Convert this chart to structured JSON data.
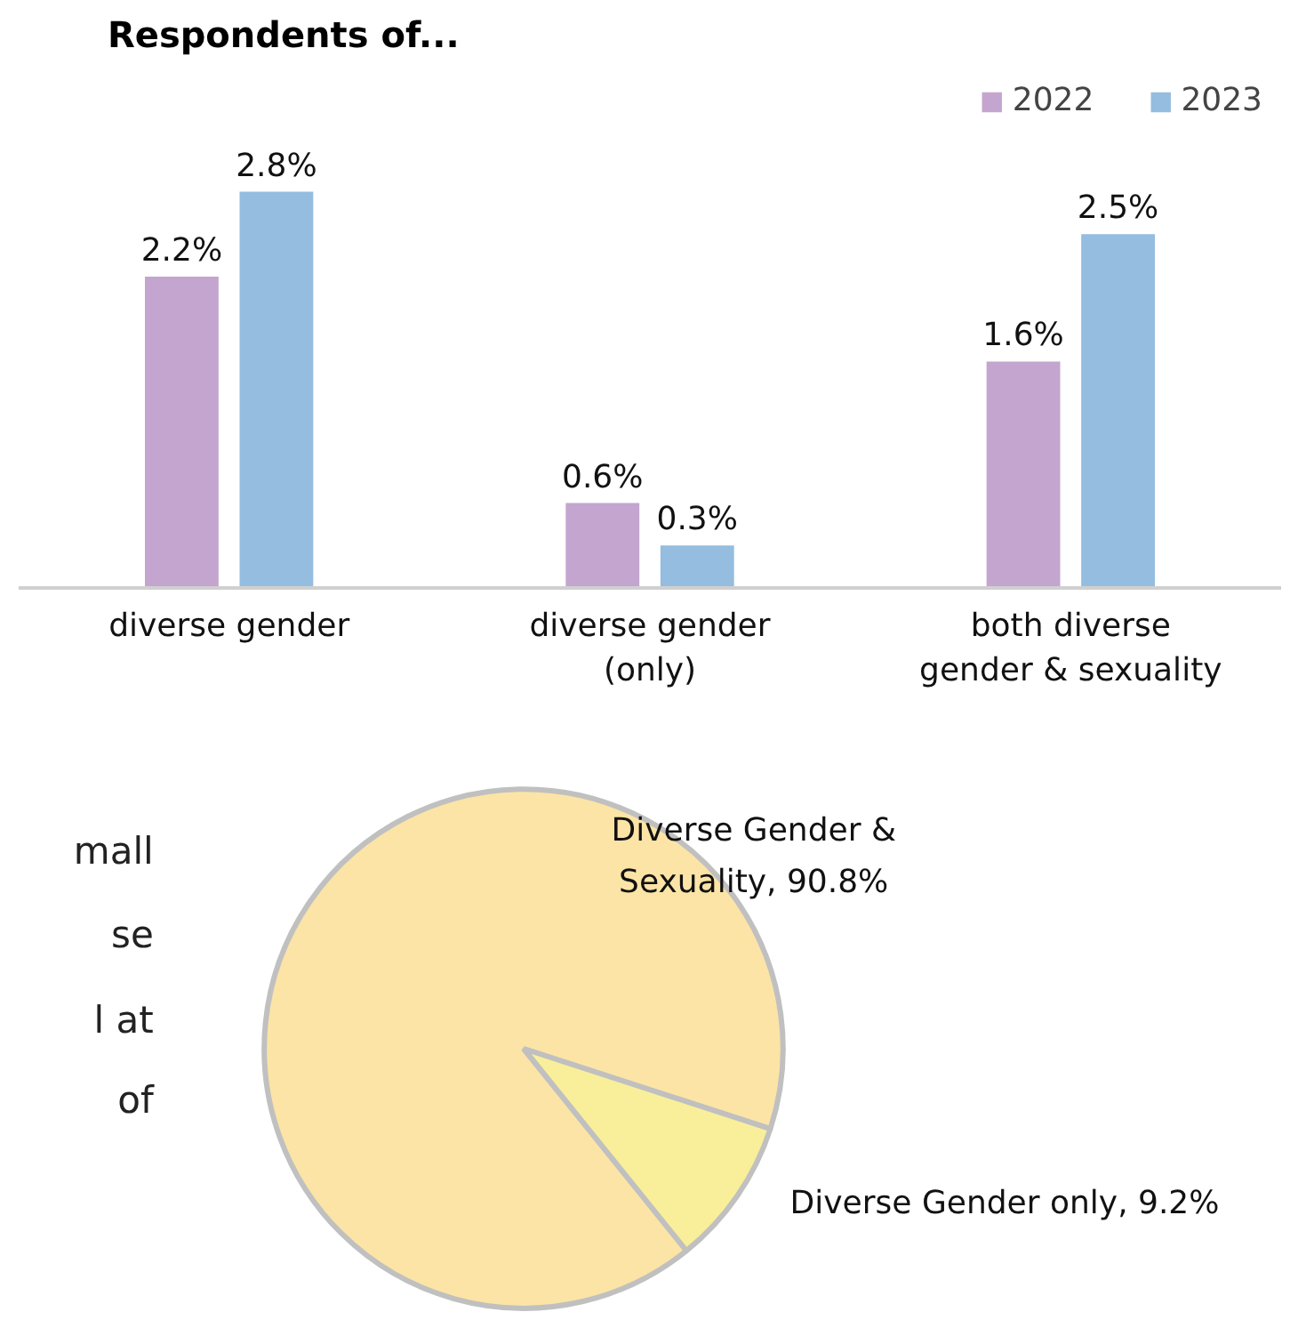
{
  "chart_data": [
    {
      "type": "bar",
      "title": "Respondents of...",
      "categories": [
        "diverse gender",
        "diverse gender (only)",
        "both diverse gender & sexuality"
      ],
      "series": [
        {
          "name": "2022",
          "color": "#c4a5cf",
          "values": [
            2.2,
            0.6,
            1.6
          ],
          "value_labels": [
            "2.2%",
            "0.6%",
            "1.6%"
          ]
        },
        {
          "name": "2023",
          "color": "#94bde0",
          "values": [
            2.8,
            0.3,
            2.5
          ],
          "value_labels": [
            "2.8%",
            "0.3%",
            "2.5%"
          ]
        }
      ],
      "legend": "top right",
      "grid": false
    },
    {
      "type": "pie",
      "categories": [
        "Diverse Gender & Sexuality",
        "Diverse Gender only"
      ],
      "values": [
        90.8,
        9.2
      ],
      "colors": [
        "#fbe4a6",
        "#f9ef9a"
      ],
      "value_labels": [
        "90.8%",
        "9.2%"
      ],
      "annotations": [
        "mall",
        "se",
        "l at",
        "of"
      ]
    }
  ]
}
